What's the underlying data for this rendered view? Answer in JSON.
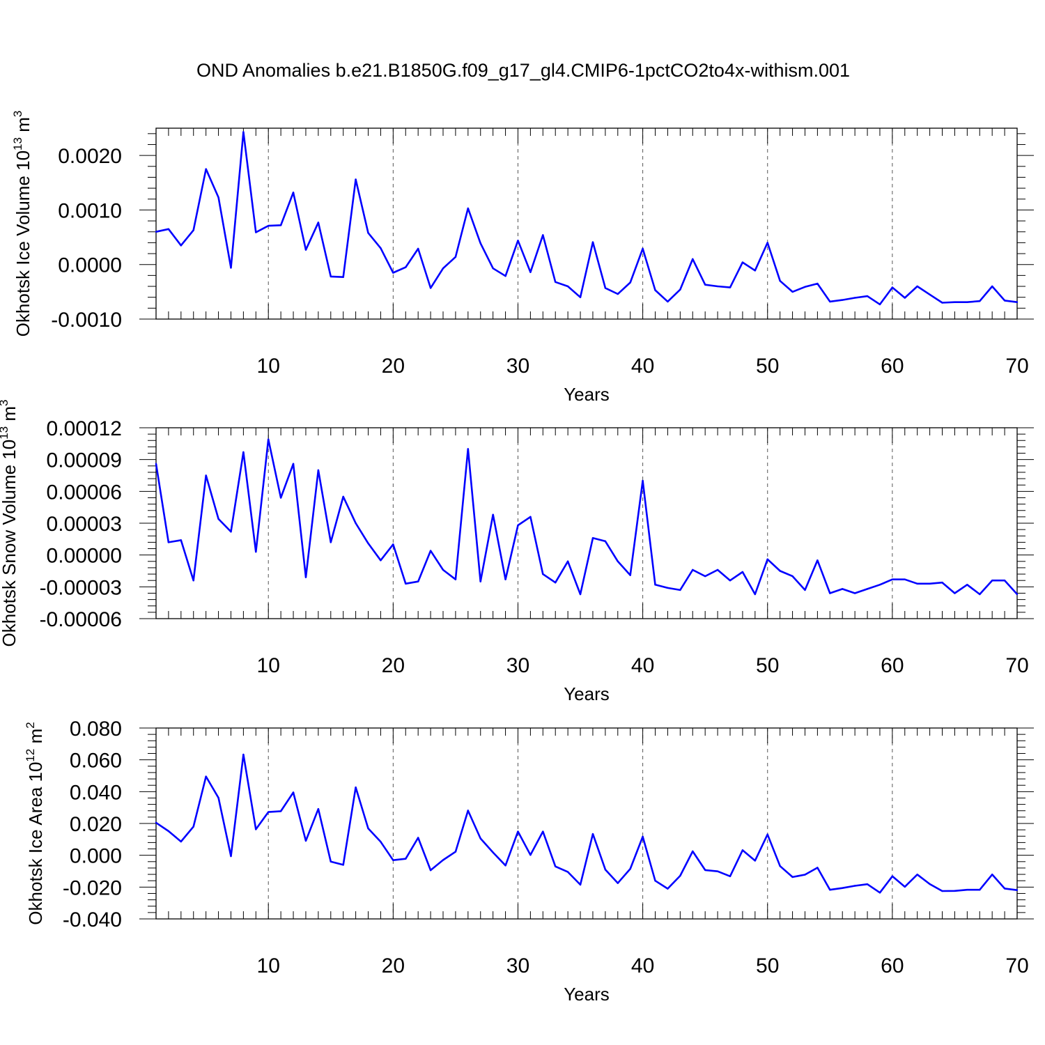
{
  "title": "OND Anomalies b.e21.B1850G.f09_g17_gl4.CMIP6-1pctCO2to4x-withism.001",
  "line_color": "#0000ff",
  "chart_data": [
    {
      "type": "line",
      "ylabel": "Okhotsk Ice Volume 10",
      "ylabel_exp": "13",
      "ylabel_unit": " m",
      "ylabel_unit_exp": "3",
      "xlabel": "Years",
      "xlim": [
        1,
        70
      ],
      "ylim": [
        -0.001,
        0.0025
      ],
      "x_ticks": [
        10,
        20,
        30,
        40,
        50,
        60,
        70
      ],
      "x_tick_labels": [
        "10",
        "20",
        "30",
        "40",
        "50",
        "60",
        "70"
      ],
      "y_ticks": [
        -0.001,
        0.0,
        0.001,
        0.002
      ],
      "y_tick_labels": [
        "-0.0010",
        "0.0000",
        "0.0010",
        "0.0020"
      ],
      "grid": "vertical-dashed",
      "series": [
        {
          "x": [
            1,
            2,
            3,
            4,
            5,
            6,
            7,
            8,
            9,
            10,
            11,
            12,
            13,
            14,
            15,
            16,
            17,
            18,
            19,
            20,
            21,
            22,
            23,
            24,
            25,
            26,
            27,
            28,
            29,
            30,
            31,
            32,
            33,
            34,
            35,
            36,
            37,
            38,
            39,
            40,
            41,
            42,
            43,
            44,
            45,
            46,
            47,
            48,
            49,
            50,
            51,
            52,
            53,
            54,
            55,
            56,
            57,
            58,
            59,
            60,
            61,
            62,
            63,
            64,
            65,
            66,
            67,
            68,
            69,
            70
          ],
          "values": [
            0.0006,
            0.00065,
            0.00035,
            0.00063,
            0.00175,
            0.00123,
            -6e-05,
            0.00243,
            0.00059,
            0.00071,
            0.00072,
            0.00132,
            0.00027,
            0.00077,
            -0.00022,
            -0.00023,
            0.00156,
            0.00058,
            0.0003,
            -0.00015,
            -5e-05,
            0.00029,
            -0.00043,
            -7e-05,
            0.00014,
            0.00103,
            0.00039,
            -7e-05,
            -0.00021,
            0.00044,
            -0.00014,
            0.00054,
            -0.00032,
            -0.0004,
            -0.0006,
            0.00041,
            -0.00043,
            -0.00054,
            -0.00033,
            0.00029,
            -0.00047,
            -0.00068,
            -0.00046,
            0.0001,
            -0.00037,
            -0.0004,
            -0.00042,
            4e-05,
            -0.00011,
            0.0004,
            -0.0003,
            -0.0005,
            -0.00041,
            -0.00035,
            -0.00068,
            -0.00065,
            -0.00061,
            -0.00058,
            -0.00073,
            -0.00042,
            -0.00061,
            -0.0004,
            -0.00055,
            -0.0007,
            -0.00069,
            -0.00069,
            -0.00067,
            -0.0004,
            -0.00066,
            -0.00069
          ]
        }
      ]
    },
    {
      "type": "line",
      "ylabel": "Okhotsk Snow Volume 10",
      "ylabel_exp": "13",
      "ylabel_unit": " m",
      "ylabel_unit_exp": "3",
      "xlabel": "Years",
      "xlim": [
        1,
        70
      ],
      "ylim": [
        -6e-05,
        0.00012
      ],
      "x_ticks": [
        10,
        20,
        30,
        40,
        50,
        60,
        70
      ],
      "x_tick_labels": [
        "10",
        "20",
        "30",
        "40",
        "50",
        "60",
        "70"
      ],
      "y_ticks": [
        -6e-05,
        -3e-05,
        0.0,
        3e-05,
        6e-05,
        9e-05,
        0.00012
      ],
      "y_tick_labels": [
        "-0.00006",
        "-0.00003",
        "0.00000",
        "0.00003",
        "0.00006",
        "0.00009",
        "0.00012"
      ],
      "grid": "vertical-dashed",
      "series": [
        {
          "x": [
            1,
            2,
            3,
            4,
            5,
            6,
            7,
            8,
            9,
            10,
            11,
            12,
            13,
            14,
            15,
            16,
            17,
            18,
            19,
            20,
            21,
            22,
            23,
            24,
            25,
            26,
            27,
            28,
            29,
            30,
            31,
            32,
            33,
            34,
            35,
            36,
            37,
            38,
            39,
            40,
            41,
            42,
            43,
            44,
            45,
            46,
            47,
            48,
            49,
            50,
            51,
            52,
            53,
            54,
            55,
            56,
            57,
            58,
            59,
            60,
            61,
            62,
            63,
            64,
            65,
            66,
            67,
            68,
            69,
            70
          ],
          "values": [
            8.6e-05,
            1.2e-05,
            1.4e-05,
            -2.4e-05,
            7.5e-05,
            3.4e-05,
            2.2e-05,
            9.7e-05,
            3e-06,
            0.000109,
            5.4e-05,
            8.6e-05,
            -2.1e-05,
            8e-05,
            1.2e-05,
            5.5e-05,
            3e-05,
            1.1e-05,
            -5e-06,
            1e-05,
            -2.7e-05,
            -2.5e-05,
            4e-06,
            -1.4e-05,
            -2.3e-05,
            0.0001,
            -2.5e-05,
            3.8e-05,
            -2.3e-05,
            2.8e-05,
            3.6e-05,
            -1.8e-05,
            -2.6e-05,
            -6e-06,
            -3.7e-05,
            1.6e-05,
            1.3e-05,
            -6e-06,
            -1.9e-05,
            7e-05,
            -2.8e-05,
            -3.1e-05,
            -3.3e-05,
            -1.4e-05,
            -2e-05,
            -1.4e-05,
            -2.4e-05,
            -1.6e-05,
            -3.7e-05,
            -4e-06,
            -1.5e-05,
            -2e-05,
            -3.3e-05,
            -5e-06,
            -3.6e-05,
            -3.2e-05,
            -3.6e-05,
            -3.2e-05,
            -2.8e-05,
            -2.3e-05,
            -2.3e-05,
            -2.7e-05,
            -2.7e-05,
            -2.6e-05,
            -3.6e-05,
            -2.8e-05,
            -3.7e-05,
            -2.4e-05,
            -2.4e-05,
            -3.7e-05
          ]
        }
      ]
    },
    {
      "type": "line",
      "ylabel": "Okhotsk Ice Area 10",
      "ylabel_exp": "12",
      "ylabel_unit": " m",
      "ylabel_unit_exp": "2",
      "xlabel": "Years",
      "xlim": [
        1,
        70
      ],
      "ylim": [
        -0.04,
        0.08
      ],
      "x_ticks": [
        10,
        20,
        30,
        40,
        50,
        60,
        70
      ],
      "x_tick_labels": [
        "10",
        "20",
        "30",
        "40",
        "50",
        "60",
        "70"
      ],
      "y_ticks": [
        -0.04,
        -0.02,
        0.0,
        0.02,
        0.04,
        0.06,
        0.08
      ],
      "y_tick_labels": [
        "-0.040",
        "-0.020",
        "0.000",
        "0.020",
        "0.040",
        "0.060",
        "0.080"
      ],
      "grid": "vertical-dashed",
      "series": [
        {
          "x": [
            1,
            2,
            3,
            4,
            5,
            6,
            7,
            8,
            9,
            10,
            11,
            12,
            13,
            14,
            15,
            16,
            17,
            18,
            19,
            20,
            21,
            22,
            23,
            24,
            25,
            26,
            27,
            28,
            29,
            30,
            31,
            32,
            33,
            34,
            35,
            36,
            37,
            38,
            39,
            40,
            41,
            42,
            43,
            44,
            45,
            46,
            47,
            48,
            49,
            50,
            51,
            52,
            53,
            54,
            55,
            56,
            57,
            58,
            59,
            60,
            61,
            62,
            63,
            64,
            65,
            66,
            67,
            68,
            69,
            70
          ],
          "values": [
            0.0205,
            0.0152,
            0.0086,
            0.018,
            0.0495,
            0.0361,
            -0.0006,
            0.0633,
            0.0163,
            0.0272,
            0.0277,
            0.0395,
            0.0091,
            0.0291,
            -0.004,
            -0.006,
            0.0427,
            0.0169,
            0.0085,
            -0.0031,
            -0.0022,
            0.011,
            -0.0094,
            -0.003,
            0.0022,
            0.0281,
            0.0106,
            0.0018,
            -0.0064,
            0.0149,
            0.0002,
            0.0149,
            -0.007,
            -0.0105,
            -0.0185,
            0.0134,
            -0.009,
            -0.0175,
            -0.0085,
            0.0117,
            -0.016,
            -0.021,
            -0.0129,
            0.0025,
            -0.0093,
            -0.0101,
            -0.0132,
            0.0032,
            -0.0034,
            0.0131,
            -0.0068,
            -0.0137,
            -0.0122,
            -0.0078,
            -0.0217,
            -0.0206,
            -0.0192,
            -0.0182,
            -0.0235,
            -0.0132,
            -0.0198,
            -0.0121,
            -0.0181,
            -0.0225,
            -0.0224,
            -0.0217,
            -0.0217,
            -0.0121,
            -0.0209,
            -0.0219
          ]
        }
      ]
    }
  ]
}
